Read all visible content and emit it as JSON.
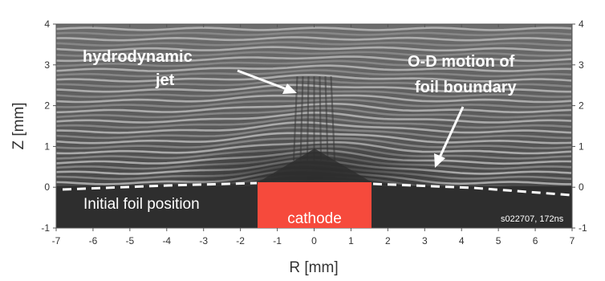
{
  "figure": {
    "axes": {
      "xlabel": "R [mm]",
      "ylabel": "Z [mm]",
      "xlim": [
        -7,
        7
      ],
      "ylim": [
        -1,
        4
      ],
      "x_ticks": [
        -7,
        -6,
        -5,
        -4,
        -3,
        -2,
        -1,
        0,
        1,
        2,
        3,
        4,
        5,
        6,
        7
      ],
      "y_ticks": [
        -1,
        0,
        1,
        2,
        3,
        4
      ]
    },
    "annotations": {
      "jet_line1": "hydrodynamic",
      "jet_line2": "jet",
      "od_line1": "O-D motion of",
      "od_line2": "foil boundary",
      "initial_foil": "Initial foil position",
      "cathode": "cathode",
      "shot_id": "s022707, 172ns"
    },
    "colors": {
      "cathode_fill": "#f64a3c",
      "image_dark": "#2e2e2e",
      "image_light": "#b8b8b8",
      "annotation_text": "#ffffff",
      "axis_text": "#333333"
    }
  }
}
